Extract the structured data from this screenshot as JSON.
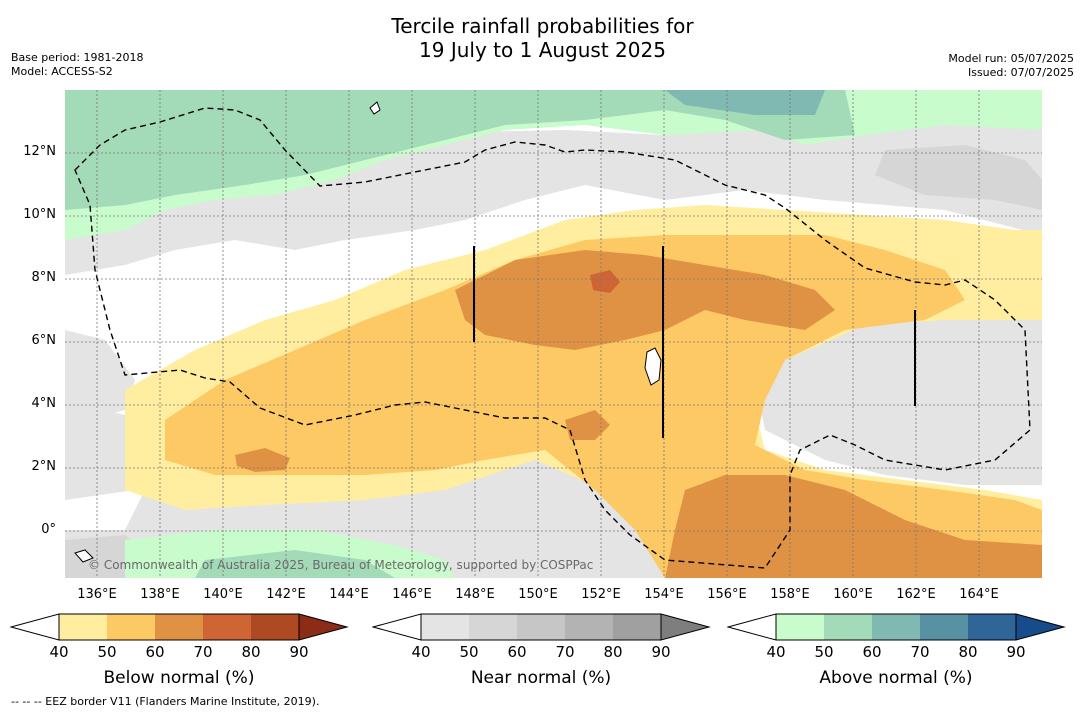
{
  "title": {
    "line1": "Tercile rainfall probabilities for",
    "line2": "19 July to 1 August 2025"
  },
  "meta_left": {
    "base_period": "Base period: 1981-2018",
    "model": "Model: ACCESS-S2"
  },
  "meta_right": {
    "model_run": "Model run: 05/07/2025",
    "issued": "Issued: 07/07/2025"
  },
  "map": {
    "x_ticks": [
      "136°E",
      "138°E",
      "140°E",
      "142°E",
      "144°E",
      "146°E",
      "148°E",
      "150°E",
      "152°E",
      "154°E",
      "156°E",
      "158°E",
      "160°E",
      "162°E",
      "164°E"
    ],
    "y_ticks": [
      "12°N",
      "10°N",
      "8°N",
      "6°N",
      "4°N",
      "2°N",
      "0°"
    ],
    "copyright": "© Commonwealth of Australia 2025, Bureau of Meteorology, supported by COSPPac",
    "colors": {
      "below": [
        "#ffeea0",
        "#fdc964",
        "#e09244",
        "#cf6434",
        "#ae4a22",
        "#8c2c17"
      ],
      "near": [
        "#e4e4e4",
        "#d6d6d6",
        "#c6c6c6",
        "#b3b3b3",
        "#a0a0a0",
        "#7e7e7e"
      ],
      "above": [
        "#c8fccc",
        "#a3dab8",
        "#80b9b1",
        "#5891a3",
        "#2f6598",
        "#164c8a"
      ]
    }
  },
  "colorbars": {
    "ticks": [
      "40",
      "50",
      "60",
      "70",
      "80",
      "90"
    ],
    "below_label": "Below normal (%)",
    "near_label": "Near normal (%)",
    "above_label": "Above normal (%)"
  },
  "footnote": "--  --  -- EEZ border V11 (Flanders Marine Institute, 2019)."
}
